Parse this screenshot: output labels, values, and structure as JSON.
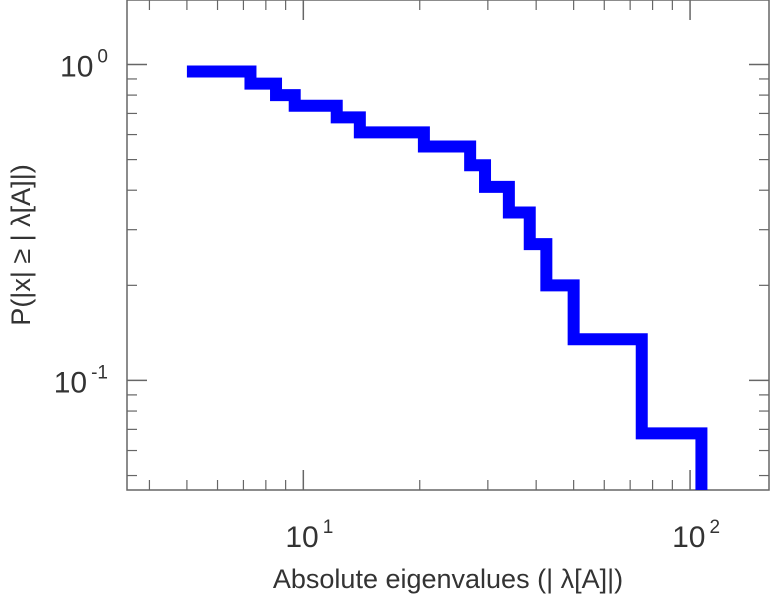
{
  "chart_data": {
    "type": "line",
    "step": true,
    "xscale": "log",
    "yscale": "log",
    "xlim": [
      3.5,
      160
    ],
    "ylim": [
      0.045,
      1.6
    ],
    "xlabel": "Absolute eigenvalues (|     λ[A]|)",
    "ylabel": "P(|x|  ≥ | λ[A]|)",
    "grid": false,
    "legend": "none",
    "color": "#0000ff",
    "x_major_ticks": [
      {
        "value": 10,
        "base": "10",
        "exp": "1"
      },
      {
        "value": 100,
        "base": "10",
        "exp": "2"
      }
    ],
    "y_major_ticks": [
      {
        "value": 1,
        "base": "10",
        "exp": "0"
      },
      {
        "value": 0.1,
        "base": "10",
        "exp": "-1"
      }
    ],
    "series": [
      {
        "x": [
          5,
          7.3,
          8.5,
          9.5,
          12.2,
          14,
          20.5,
          27,
          29.5,
          34,
          38.5,
          42.5,
          50,
          75,
          107,
          107
        ],
        "y": [
          0.95,
          0.87,
          0.8,
          0.74,
          0.68,
          0.61,
          0.55,
          0.48,
          0.41,
          0.34,
          0.27,
          0.2,
          0.135,
          0.068,
          0.068,
          0.045
        ]
      }
    ]
  }
}
